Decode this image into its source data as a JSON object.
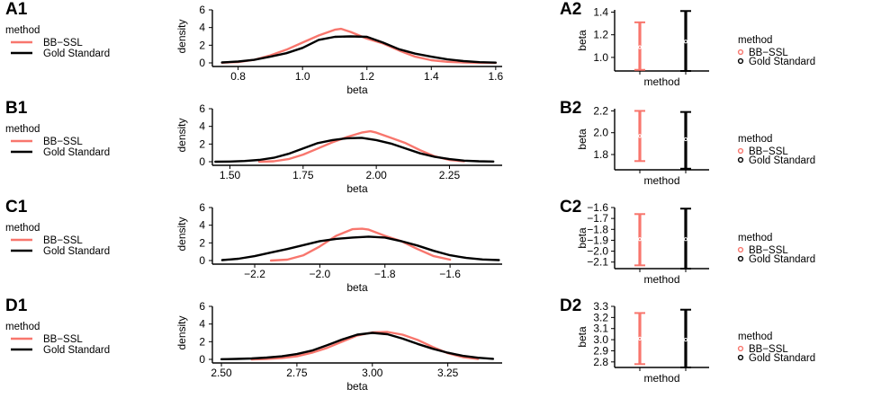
{
  "chart_data": [
    {
      "panel": "A1",
      "type": "line",
      "xlabel": "beta",
      "ylabel": "density",
      "xlim": [
        0.72,
        1.62
      ],
      "ylim": [
        0,
        6
      ],
      "xticks": [
        0.8,
        1.0,
        1.2,
        1.4,
        1.6
      ],
      "xtick_labels": [
        "0.8",
        "1.0",
        "1.2",
        "1.4",
        "1.6"
      ],
      "yticks": [
        0,
        2,
        4,
        6
      ],
      "ytick_labels": [
        "0",
        "2",
        "4",
        "6"
      ],
      "legend": {
        "title": "method",
        "position": "left",
        "entries": [
          "BB−SSL",
          "Gold Standard"
        ]
      },
      "series": [
        {
          "name": "BB−SSL",
          "color": "#f8766d",
          "x": [
            0.75,
            0.8,
            0.85,
            0.9,
            0.95,
            1.0,
            1.05,
            1.1,
            1.12,
            1.15,
            1.2,
            1.25,
            1.3,
            1.35,
            1.4,
            1.45,
            1.5,
            1.55,
            1.6
          ],
          "y": [
            0.02,
            0.1,
            0.35,
            0.85,
            1.5,
            2.3,
            3.1,
            3.75,
            3.85,
            3.5,
            2.75,
            2.2,
            1.4,
            0.7,
            0.3,
            0.12,
            0.05,
            0.01,
            0.0
          ]
        },
        {
          "name": "Gold Standard",
          "color": "#000000",
          "x": [
            0.75,
            0.8,
            0.85,
            0.9,
            0.95,
            1.0,
            1.05,
            1.1,
            1.15,
            1.2,
            1.25,
            1.3,
            1.35,
            1.4,
            1.45,
            1.5,
            1.55,
            1.6
          ],
          "y": [
            0.05,
            0.15,
            0.35,
            0.7,
            1.1,
            1.7,
            2.6,
            2.95,
            3.0,
            2.95,
            2.3,
            1.55,
            1.05,
            0.7,
            0.4,
            0.2,
            0.08,
            0.03
          ]
        }
      ]
    },
    {
      "panel": "A2",
      "type": "scatter",
      "xlabel": "method",
      "ylabel": "beta",
      "ylim": [
        0.88,
        1.42
      ],
      "yticks": [
        1.0,
        1.2,
        1.4
      ],
      "ytick_labels": [
        "1.0",
        "1.2",
        "1.4"
      ],
      "legend": {
        "title": "method",
        "position": "right",
        "entries": [
          "BB−SSL",
          "Gold Standard"
        ]
      },
      "series": [
        {
          "name": "BB−SSL",
          "color": "#f8766d",
          "mean": 1.09,
          "lower": 0.89,
          "upper": 1.31
        },
        {
          "name": "Gold Standard",
          "color": "#000000",
          "mean": 1.14,
          "lower": 0.88,
          "upper": 1.41
        }
      ]
    },
    {
      "panel": "B1",
      "type": "line",
      "xlabel": "beta",
      "ylabel": "density",
      "xlim": [
        1.44,
        2.43
      ],
      "ylim": [
        0,
        6
      ],
      "xticks": [
        1.5,
        1.75,
        2.0,
        2.25
      ],
      "xtick_labels": [
        "1.50",
        "1.75",
        "2.00",
        "2.25"
      ],
      "yticks": [
        0,
        2,
        4,
        6
      ],
      "ytick_labels": [
        "0",
        "2",
        "4",
        "6"
      ],
      "legend": {
        "title": "method",
        "position": "left",
        "entries": [
          "BB−SSL",
          "Gold Standard"
        ]
      },
      "series": [
        {
          "name": "BB−SSL",
          "color": "#f8766d",
          "x": [
            1.6,
            1.65,
            1.7,
            1.75,
            1.8,
            1.85,
            1.9,
            1.95,
            1.98,
            2.0,
            2.05,
            2.1,
            2.15,
            2.2,
            2.25,
            2.3
          ],
          "y": [
            0.0,
            0.05,
            0.3,
            0.8,
            1.5,
            2.2,
            2.8,
            3.3,
            3.45,
            3.3,
            2.7,
            2.1,
            1.3,
            0.6,
            0.2,
            0.05
          ]
        },
        {
          "name": "Gold Standard",
          "color": "#000000",
          "x": [
            1.45,
            1.5,
            1.55,
            1.6,
            1.65,
            1.7,
            1.75,
            1.8,
            1.85,
            1.9,
            1.95,
            2.0,
            2.05,
            2.1,
            2.15,
            2.2,
            2.25,
            2.3,
            2.35,
            2.4
          ],
          "y": [
            0.0,
            0.02,
            0.08,
            0.2,
            0.45,
            0.9,
            1.5,
            2.1,
            2.45,
            2.65,
            2.7,
            2.45,
            2.05,
            1.5,
            0.95,
            0.55,
            0.3,
            0.12,
            0.05,
            0.02
          ]
        }
      ]
    },
    {
      "panel": "B2",
      "type": "scatter",
      "xlabel": "method",
      "ylabel": "beta",
      "ylim": [
        1.66,
        2.22
      ],
      "yticks": [
        1.8,
        2.0,
        2.2
      ],
      "ytick_labels": [
        "1.8",
        "2.0",
        "2.2"
      ],
      "legend": {
        "title": "method",
        "position": "right",
        "entries": [
          "BB−SSL",
          "Gold Standard"
        ]
      },
      "series": [
        {
          "name": "BB−SSL",
          "color": "#f8766d",
          "mean": 1.97,
          "lower": 1.74,
          "upper": 2.2
        },
        {
          "name": "Gold Standard",
          "color": "#000000",
          "mean": 1.94,
          "lower": 1.67,
          "upper": 2.19
        }
      ]
    },
    {
      "panel": "C1",
      "type": "line",
      "xlabel": "beta",
      "ylabel": "density",
      "xlim": [
        -2.33,
        -1.44
      ],
      "ylim": [
        0,
        6
      ],
      "xticks": [
        -2.2,
        -2.0,
        -1.8,
        -1.6
      ],
      "xtick_labels": [
        "−2.2",
        "−2.0",
        "−1.8",
        "−1.6"
      ],
      "yticks": [
        0,
        2,
        4,
        6
      ],
      "ytick_labels": [
        "0",
        "2",
        "4",
        "6"
      ],
      "legend": {
        "title": "method",
        "position": "left",
        "entries": [
          "BB−SSL",
          "Gold Standard"
        ]
      },
      "series": [
        {
          "name": "BB−SSL",
          "color": "#f8766d",
          "x": [
            -2.15,
            -2.1,
            -2.05,
            -2.0,
            -1.95,
            -1.9,
            -1.87,
            -1.85,
            -1.8,
            -1.75,
            -1.7,
            -1.65,
            -1.6
          ],
          "y": [
            0.0,
            0.1,
            0.6,
            1.6,
            2.8,
            3.55,
            3.6,
            3.5,
            2.8,
            2.2,
            1.3,
            0.5,
            0.1
          ]
        },
        {
          "name": "Gold Standard",
          "color": "#000000",
          "x": [
            -2.3,
            -2.25,
            -2.2,
            -2.15,
            -2.1,
            -2.05,
            -2.0,
            -1.95,
            -1.9,
            -1.85,
            -1.8,
            -1.75,
            -1.7,
            -1.65,
            -1.6,
            -1.55,
            -1.5,
            -1.45
          ],
          "y": [
            0.05,
            0.2,
            0.5,
            0.9,
            1.3,
            1.75,
            2.2,
            2.45,
            2.6,
            2.7,
            2.6,
            2.2,
            1.7,
            1.1,
            0.6,
            0.3,
            0.12,
            0.05
          ]
        }
      ]
    },
    {
      "panel": "C2",
      "type": "scatter",
      "xlabel": "method",
      "ylabel": "beta",
      "ylim": [
        -2.16,
        -1.6
      ],
      "yticks": [
        -2.1,
        -2.0,
        -1.9,
        -1.8,
        -1.7,
        -1.6
      ],
      "ytick_labels": [
        "−2.1",
        "−2.0",
        "−1.9",
        "−1.8",
        "−1.7",
        "−1.6"
      ],
      "legend": {
        "title": "method",
        "position": "right",
        "entries": [
          "BB−SSL",
          "Gold Standard"
        ]
      },
      "series": [
        {
          "name": "BB−SSL",
          "color": "#f8766d",
          "mean": -1.89,
          "lower": -2.13,
          "upper": -1.66
        },
        {
          "name": "Gold Standard",
          "color": "#000000",
          "mean": -1.89,
          "lower": -2.16,
          "upper": -1.61
        }
      ]
    },
    {
      "panel": "D1",
      "type": "line",
      "xlabel": "beta",
      "ylabel": "density",
      "xlim": [
        2.47,
        3.43
      ],
      "ylim": [
        0,
        6
      ],
      "xticks": [
        2.5,
        2.75,
        3.0,
        3.25
      ],
      "xtick_labels": [
        "2.50",
        "2.75",
        "3.00",
        "3.25"
      ],
      "yticks": [
        0,
        2,
        4,
        6
      ],
      "ytick_labels": [
        "0",
        "2",
        "4",
        "6"
      ],
      "legend": {
        "title": "method",
        "position": "left",
        "entries": [
          "BB−SSL",
          "Gold Standard"
        ]
      },
      "series": [
        {
          "name": "BB−SSL",
          "color": "#f8766d",
          "x": [
            2.6,
            2.65,
            2.7,
            2.75,
            2.8,
            2.85,
            2.9,
            2.95,
            3.0,
            3.05,
            3.1,
            3.15,
            3.2,
            3.25,
            3.3,
            3.35
          ],
          "y": [
            0.0,
            0.05,
            0.15,
            0.35,
            0.75,
            1.3,
            2.0,
            2.7,
            3.05,
            3.1,
            2.8,
            2.2,
            1.4,
            0.7,
            0.25,
            0.05
          ]
        },
        {
          "name": "Gold Standard",
          "color": "#000000",
          "x": [
            2.5,
            2.55,
            2.6,
            2.65,
            2.7,
            2.75,
            2.8,
            2.85,
            2.9,
            2.95,
            3.0,
            3.05,
            3.1,
            3.15,
            3.2,
            3.25,
            3.3,
            3.35,
            3.4
          ],
          "y": [
            0.02,
            0.05,
            0.1,
            0.2,
            0.35,
            0.6,
            1.0,
            1.6,
            2.25,
            2.8,
            3.0,
            2.85,
            2.35,
            1.75,
            1.2,
            0.75,
            0.4,
            0.18,
            0.06
          ]
        }
      ]
    },
    {
      "panel": "D2",
      "type": "scatter",
      "xlabel": "method",
      "ylabel": "beta",
      "ylim": [
        2.75,
        3.3
      ],
      "yticks": [
        2.8,
        2.9,
        3.0,
        3.1,
        3.2,
        3.3
      ],
      "ytick_labels": [
        "2.8",
        "2.9",
        "3.0",
        "3.1",
        "3.2",
        "3.3"
      ],
      "legend": {
        "title": "method",
        "position": "right",
        "entries": [
          "BB−SSL",
          "Gold Standard"
        ]
      },
      "series": [
        {
          "name": "BB−SSL",
          "color": "#f8766d",
          "mean": 3.01,
          "lower": 2.78,
          "upper": 3.24
        },
        {
          "name": "Gold Standard",
          "color": "#000000",
          "mean": 3.0,
          "lower": 2.75,
          "upper": 3.27
        }
      ]
    }
  ]
}
